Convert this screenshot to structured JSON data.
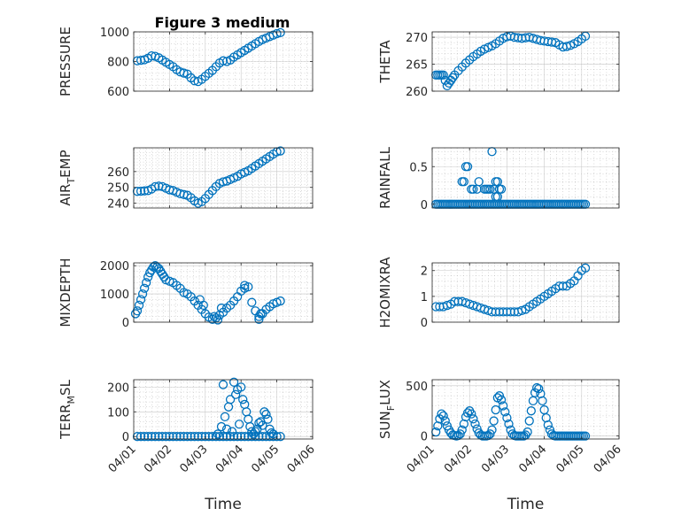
{
  "figure": {
    "title": "Figure 3 medium",
    "marker_color": "#0072BD",
    "xticklabels": [
      "04/01",
      "04/02",
      "04/03",
      "04/04",
      "04/05",
      "04/06"
    ]
  },
  "chart_data": [
    {
      "type": "scatter",
      "ylabel": "PRESSURE",
      "xlabel": "",
      "xlim": [
        "04/01",
        "04/06"
      ],
      "ylim": [
        600,
        1000
      ],
      "yticks": [
        600,
        800,
        1000
      ],
      "yticklabels": [
        "600",
        "800",
        "1000"
      ],
      "x": [
        0.1,
        0.2,
        0.3,
        0.4,
        0.5,
        0.6,
        0.7,
        0.8,
        0.9,
        1.0,
        1.1,
        1.2,
        1.3,
        1.4,
        1.5,
        1.6,
        1.7,
        1.8,
        1.9,
        2.0,
        2.1,
        2.2,
        2.3,
        2.4,
        2.5,
        2.6,
        2.7,
        2.8,
        2.9,
        3.0,
        3.1,
        3.2,
        3.3,
        3.4,
        3.5,
        3.6,
        3.7,
        3.8,
        3.9,
        4.0,
        4.1
      ],
      "y": [
        805,
        808,
        812,
        822,
        838,
        835,
        825,
        810,
        795,
        780,
        765,
        745,
        730,
        722,
        715,
        690,
        670,
        665,
        680,
        700,
        720,
        740,
        765,
        790,
        805,
        800,
        810,
        830,
        845,
        860,
        875,
        890,
        905,
        920,
        935,
        948,
        958,
        968,
        978,
        988,
        995
      ]
    },
    {
      "type": "scatter",
      "ylabel": "THETA",
      "xlabel": "",
      "xlim": [
        "04/01",
        "04/06"
      ],
      "ylim": [
        260,
        271
      ],
      "yticks": [
        260,
        265,
        270
      ],
      "yticklabels": [
        "260",
        "265",
        "270"
      ],
      "x": [
        0.1,
        0.15,
        0.2,
        0.25,
        0.3,
        0.35,
        0.4,
        0.45,
        0.5,
        0.55,
        0.6,
        0.7,
        0.8,
        0.9,
        1.0,
        1.1,
        1.2,
        1.3,
        1.4,
        1.5,
        1.6,
        1.7,
        1.8,
        1.9,
        2.0,
        2.1,
        2.2,
        2.3,
        2.4,
        2.5,
        2.6,
        2.7,
        2.8,
        2.9,
        3.0,
        3.1,
        3.2,
        3.3,
        3.4,
        3.5,
        3.6,
        3.7,
        3.8,
        3.9,
        4.0,
        4.1
      ],
      "y": [
        263,
        263,
        263,
        263,
        263,
        262,
        261,
        261.5,
        262,
        262.5,
        263,
        263.8,
        264.5,
        265.2,
        265.8,
        266.4,
        266.9,
        267.4,
        267.8,
        268.1,
        268.4,
        268.8,
        269.3,
        269.8,
        270.1,
        270.2,
        270,
        269.9,
        269.8,
        269.9,
        270,
        269.8,
        269.6,
        269.4,
        269.3,
        269.2,
        269.1,
        269,
        268.6,
        268.2,
        268.3,
        268.5,
        268.8,
        269.2,
        269.7,
        270.2
      ]
    },
    {
      "type": "scatter",
      "ylabel": "AIR_TEMP",
      "xlabel": "",
      "xlim": [
        "04/01",
        "04/06"
      ],
      "ylim": [
        237,
        275
      ],
      "yticks": [
        240,
        250,
        260
      ],
      "yticklabels": [
        "240",
        "250",
        "260"
      ],
      "x": [
        0.1,
        0.2,
        0.3,
        0.4,
        0.5,
        0.6,
        0.7,
        0.8,
        0.9,
        1.0,
        1.1,
        1.2,
        1.3,
        1.4,
        1.5,
        1.6,
        1.7,
        1.8,
        1.9,
        2.0,
        2.1,
        2.2,
        2.3,
        2.4,
        2.5,
        2.6,
        2.7,
        2.8,
        2.9,
        3.0,
        3.1,
        3.2,
        3.3,
        3.4,
        3.5,
        3.6,
        3.7,
        3.8,
        3.9,
        4.0,
        4.1
      ],
      "y": [
        247.5,
        247.6,
        247.8,
        248,
        249,
        250.5,
        250.8,
        250.5,
        249.5,
        248.5,
        248,
        247,
        246,
        245.5,
        245,
        243.5,
        241.5,
        240,
        241,
        243,
        245.5,
        248,
        250.5,
        252.5,
        253.5,
        254,
        255,
        256,
        257,
        258.5,
        259.5,
        260.5,
        262,
        263.5,
        265,
        266.5,
        268,
        269.5,
        271,
        272.5,
        273
      ]
    },
    {
      "type": "scatter",
      "ylabel": "RAINFALL",
      "xlabel": "",
      "xlim": [
        "04/01",
        "04/06"
      ],
      "ylim": [
        -0.05,
        0.75
      ],
      "yticks": [
        0,
        0.5
      ],
      "yticklabels": [
        "0",
        "0.5"
      ],
      "x": [
        0.1,
        0.15,
        0.2,
        0.25,
        0.3,
        0.35,
        0.4,
        0.45,
        0.5,
        0.55,
        0.6,
        0.65,
        0.7,
        0.75,
        0.8,
        0.85,
        0.9,
        0.95,
        1.0,
        1.05,
        1.1,
        1.15,
        1.2,
        1.25,
        1.3,
        1.35,
        1.4,
        1.45,
        1.5,
        1.55,
        1.6,
        1.65,
        1.7,
        1.75,
        1.8,
        1.85,
        1.9,
        1.95,
        2.0,
        2.05,
        2.1,
        2.15,
        2.2,
        2.25,
        2.3,
        2.35,
        2.4,
        2.45,
        2.5,
        2.55,
        2.6,
        2.65,
        2.7,
        2.75,
        2.8,
        2.85,
        2.9,
        2.95,
        3.0,
        3.05,
        3.1,
        3.15,
        3.2,
        3.25,
        3.3,
        3.35,
        3.4,
        3.45,
        3.5,
        3.55,
        3.6,
        3.65,
        3.7,
        3.75,
        3.8,
        3.85,
        3.9,
        3.95,
        4.0,
        4.05,
        4.1,
        0.8,
        0.85,
        0.9,
        0.95,
        1.05,
        1.1,
        1.2,
        1.25,
        1.4,
        1.45,
        1.5,
        1.55,
        1.6,
        1.65,
        1.7,
        1.75,
        1.8,
        1.85,
        1.7,
        1.75
      ],
      "y": [
        0,
        0,
        0,
        0,
        0,
        0,
        0,
        0,
        0,
        0,
        0,
        0,
        0,
        0,
        0,
        0,
        0,
        0,
        0,
        0,
        0,
        0,
        0,
        0,
        0,
        0,
        0,
        0,
        0,
        0,
        0,
        0,
        0,
        0,
        0,
        0,
        0,
        0,
        0,
        0,
        0,
        0,
        0,
        0,
        0,
        0,
        0,
        0,
        0,
        0,
        0,
        0,
        0,
        0,
        0,
        0,
        0,
        0,
        0,
        0,
        0,
        0,
        0,
        0,
        0,
        0,
        0,
        0,
        0,
        0,
        0,
        0,
        0,
        0,
        0,
        0,
        0,
        0,
        0,
        0,
        0,
        0.3,
        0.3,
        0.5,
        0.5,
        0.2,
        0.2,
        0.2,
        0.3,
        0.2,
        0.2,
        0.2,
        0.2,
        0.7,
        0.2,
        0.3,
        0.3,
        0.2,
        0.2,
        0.1,
        0.1
      ]
    },
    {
      "type": "scatter",
      "ylabel": "MIXDEPTH",
      "xlabel": "",
      "xlim": [
        "04/01",
        "04/06"
      ],
      "ylim": [
        0,
        2100
      ],
      "yticks": [
        0,
        1000,
        2000
      ],
      "yticklabels": [
        "0",
        "1000",
        "2000"
      ],
      "x": [
        0.05,
        0.1,
        0.15,
        0.2,
        0.25,
        0.3,
        0.35,
        0.4,
        0.45,
        0.5,
        0.55,
        0.6,
        0.65,
        0.7,
        0.75,
        0.8,
        0.85,
        0.9,
        1.0,
        1.1,
        1.2,
        1.3,
        1.4,
        1.5,
        1.6,
        1.7,
        1.8,
        1.9,
        2.0,
        2.1,
        2.2,
        2.3,
        2.4,
        2.5,
        2.6,
        2.7,
        2.8,
        2.9,
        3.0,
        3.1,
        3.2,
        3.3,
        3.4,
        3.5,
        3.6,
        3.7,
        3.8,
        3.9,
        4.0,
        4.1,
        1.85,
        1.95,
        2.25,
        2.35,
        2.45,
        3.1,
        3.5,
        3.55
      ],
      "y": [
        300,
        400,
        600,
        800,
        1000,
        1200,
        1400,
        1600,
        1750,
        1850,
        1950,
        2000,
        1950,
        1900,
        1800,
        1700,
        1600,
        1500,
        1450,
        1400,
        1300,
        1200,
        1050,
        1000,
        900,
        750,
        600,
        450,
        300,
        180,
        100,
        150,
        250,
        350,
        500,
        600,
        750,
        900,
        1100,
        1200,
        1250,
        700,
        400,
        200,
        300,
        450,
        550,
        650,
        700,
        750,
        800,
        600,
        200,
        80,
        500,
        1300,
        100,
        300
      ]
    },
    {
      "type": "scatter",
      "ylabel": "H2OMIXRA",
      "xlabel": "",
      "xlim": [
        "04/01",
        "04/06"
      ],
      "ylim": [
        0,
        2.3
      ],
      "yticks": [
        0,
        1,
        2
      ],
      "yticklabels": [
        "0",
        "1",
        "2"
      ],
      "x": [
        0.1,
        0.2,
        0.3,
        0.4,
        0.5,
        0.6,
        0.7,
        0.8,
        0.9,
        1.0,
        1.1,
        1.2,
        1.3,
        1.4,
        1.5,
        1.6,
        1.7,
        1.8,
        1.9,
        2.0,
        2.1,
        2.2,
        2.3,
        2.4,
        2.5,
        2.6,
        2.7,
        2.8,
        2.9,
        3.0,
        3.1,
        3.2,
        3.3,
        3.4,
        3.5,
        3.6,
        3.7,
        3.8,
        3.9,
        4.0,
        4.1
      ],
      "y": [
        0.6,
        0.6,
        0.6,
        0.65,
        0.7,
        0.8,
        0.8,
        0.8,
        0.75,
        0.7,
        0.65,
        0.6,
        0.55,
        0.5,
        0.45,
        0.4,
        0.4,
        0.4,
        0.4,
        0.4,
        0.4,
        0.4,
        0.4,
        0.45,
        0.5,
        0.6,
        0.7,
        0.8,
        0.9,
        1.0,
        1.1,
        1.2,
        1.3,
        1.4,
        1.4,
        1.4,
        1.5,
        1.6,
        1.8,
        2.0,
        2.1
      ]
    },
    {
      "type": "scatter",
      "ylabel": "TERR_MSL",
      "xlabel": "Time",
      "xlim": [
        "04/01",
        "04/06"
      ],
      "ylim": [
        -10,
        230
      ],
      "yticks": [
        0,
        100,
        200
      ],
      "yticklabels": [
        "0",
        "100",
        "200"
      ],
      "x": [
        0.1,
        0.2,
        0.3,
        0.4,
        0.5,
        0.6,
        0.7,
        0.8,
        0.9,
        1.0,
        1.1,
        1.2,
        1.3,
        1.4,
        1.5,
        1.6,
        1.7,
        1.8,
        1.9,
        2.0,
        2.1,
        2.2,
        2.3,
        2.4,
        2.5,
        2.6,
        2.7,
        2.8,
        2.9,
        3.0,
        3.1,
        3.2,
        3.3,
        3.4,
        3.5,
        3.6,
        3.7,
        3.8,
        3.9,
        4.0,
        4.1,
        2.35,
        2.45,
        2.5,
        2.55,
        2.6,
        2.65,
        2.7,
        2.75,
        2.8,
        2.85,
        2.9,
        2.95,
        3.0,
        3.05,
        3.1,
        3.15,
        3.2,
        3.25,
        3.3,
        3.35,
        3.4,
        3.45,
        3.5,
        3.55,
        3.6,
        3.65,
        3.7,
        3.75,
        3.8,
        3.85,
        3.9
      ],
      "y": [
        0,
        0,
        0,
        0,
        0,
        0,
        0,
        0,
        0,
        0,
        0,
        0,
        0,
        0,
        0,
        0,
        0,
        0,
        0,
        0,
        0,
        0,
        0,
        0,
        0,
        0,
        0,
        0,
        0,
        0,
        0,
        0,
        0,
        0,
        0,
        0,
        0,
        0,
        0,
        0,
        0,
        10,
        40,
        210,
        80,
        30,
        120,
        150,
        20,
        220,
        170,
        190,
        50,
        200,
        150,
        130,
        100,
        70,
        40,
        20,
        10,
        20,
        30,
        55,
        60,
        45,
        100,
        90,
        70,
        30,
        15,
        10
      ]
    },
    {
      "type": "scatter",
      "ylabel": "SUN_FLUX",
      "xlabel": "Time",
      "xlim": [
        "04/01",
        "04/06"
      ],
      "ylim": [
        -30,
        560
      ],
      "yticks": [
        0,
        500
      ],
      "yticklabels": [
        "0",
        "500"
      ],
      "x": [
        0.1,
        0.15,
        0.2,
        0.25,
        0.3,
        0.35,
        0.4,
        0.45,
        0.5,
        0.55,
        0.6,
        0.65,
        0.7,
        0.75,
        0.8,
        0.85,
        0.9,
        0.95,
        1.0,
        1.05,
        1.1,
        1.15,
        1.2,
        1.25,
        1.3,
        1.35,
        1.4,
        1.45,
        1.5,
        1.55,
        1.6,
        1.65,
        1.7,
        1.75,
        1.8,
        1.85,
        1.9,
        1.95,
        2.0,
        2.05,
        2.1,
        2.15,
        2.2,
        2.25,
        2.3,
        2.35,
        2.4,
        2.45,
        2.5,
        2.55,
        2.6,
        2.65,
        2.7,
        2.75,
        2.8,
        2.85,
        2.9,
        2.95,
        3.0,
        3.05,
        3.1,
        3.15,
        3.2,
        3.25,
        3.3,
        3.35,
        3.4,
        3.45,
        3.5,
        3.55,
        3.6,
        3.65,
        3.7,
        3.75,
        3.8,
        3.85,
        3.9,
        3.95,
        4.0,
        4.05,
        4.1
      ],
      "y": [
        40,
        100,
        170,
        220,
        200,
        150,
        100,
        60,
        30,
        10,
        5,
        0,
        5,
        20,
        60,
        120,
        190,
        230,
        250,
        220,
        170,
        120,
        70,
        30,
        10,
        0,
        0,
        0,
        5,
        20,
        60,
        150,
        260,
        380,
        400,
        360,
        300,
        240,
        180,
        120,
        60,
        20,
        5,
        0,
        0,
        0,
        0,
        0,
        10,
        40,
        150,
        250,
        350,
        430,
        480,
        470,
        420,
        350,
        260,
        180,
        110,
        60,
        20,
        5,
        0,
        0,
        0,
        0,
        0,
        0,
        0,
        0,
        0,
        0,
        0,
        0,
        0,
        0,
        0,
        0,
        0
      ]
    }
  ],
  "labels": {
    "ylabels": [
      {
        "main": "PRESSURE",
        "sub": "",
        "tail": ""
      },
      {
        "main": "THETA",
        "sub": "",
        "tail": ""
      },
      {
        "main": "AIR",
        "sub": "T",
        "tail": "EMP"
      },
      {
        "main": "RAINFALL",
        "sub": "",
        "tail": ""
      },
      {
        "main": "MIXDEPTH",
        "sub": "",
        "tail": ""
      },
      {
        "main": "H2OMIXRA",
        "sub": "",
        "tail": ""
      },
      {
        "main": "TERR",
        "sub": "M",
        "tail": "SL"
      },
      {
        "main": "SUN",
        "sub": "F",
        "tail": "LUX"
      }
    ],
    "xlabel": "Time"
  }
}
